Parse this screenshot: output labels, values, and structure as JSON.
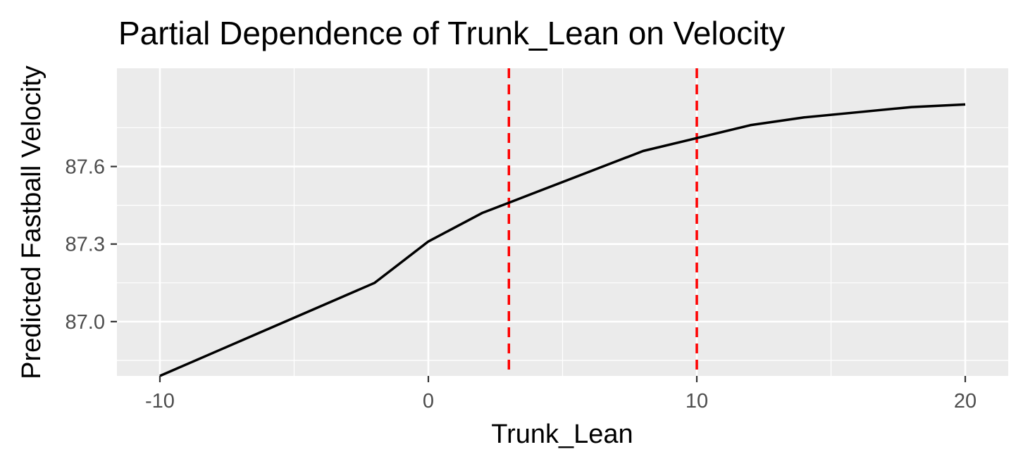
{
  "chart_data": {
    "type": "line",
    "title": "Partial Dependence of Trunk_Lean on Velocity",
    "xlabel": "Trunk_Lean",
    "ylabel": "Predicted Fastball Velocity",
    "xlim": [
      -11.6,
      21.6
    ],
    "ylim": [
      86.79,
      87.98
    ],
    "x_ticks": [
      -10,
      0,
      10,
      20
    ],
    "x_tick_labels": [
      "-10",
      "0",
      "10",
      "20"
    ],
    "y_ticks": [
      87.0,
      87.3,
      87.6
    ],
    "y_tick_labels": [
      "87.0",
      "87.3",
      "87.6"
    ],
    "grid": true,
    "legend": "none",
    "series": [
      {
        "color": "#000000",
        "x": [
          -10,
          -8,
          -6,
          -4,
          -2,
          0,
          2,
          3,
          4,
          6,
          8,
          10,
          12,
          14,
          16,
          18,
          20
        ],
        "y": [
          86.79,
          86.88,
          86.97,
          87.06,
          87.15,
          87.31,
          87.42,
          87.46,
          87.5,
          87.58,
          87.66,
          87.71,
          87.76,
          87.79,
          87.81,
          87.83,
          87.84
        ]
      }
    ],
    "reference_lines": [
      {
        "axis": "x",
        "value": 3,
        "color": "#ff0000",
        "style": "dashed"
      },
      {
        "axis": "x",
        "value": 10,
        "color": "#ff0000",
        "style": "dashed"
      }
    ],
    "panel_color": "#ebebeb",
    "grid_color": "#ffffff"
  }
}
